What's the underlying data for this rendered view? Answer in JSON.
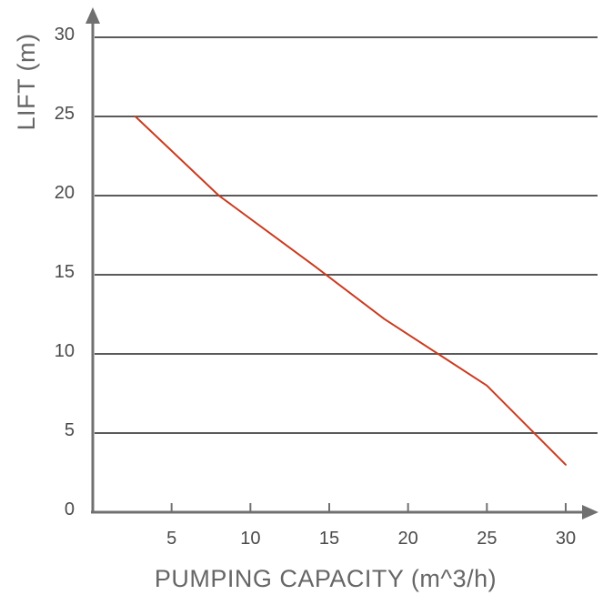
{
  "chart_data": {
    "type": "line",
    "xlabel": "PUMPING CAPACITY (m^3/h)",
    "ylabel": "LIFT (m)",
    "xlim": [
      0,
      30
    ],
    "ylim": [
      0,
      30
    ],
    "x_ticks": [
      5,
      10,
      15,
      20,
      25,
      30
    ],
    "y_ticks": [
      0,
      5,
      10,
      15,
      20,
      25,
      30
    ],
    "grid": "horizontal",
    "series": [
      {
        "color": "#cc3a1e",
        "x": [
          2.7,
          8,
          14,
          18.5,
          25,
          30
        ],
        "y": [
          25,
          20,
          15.6,
          12.2,
          8,
          3
        ]
      }
    ]
  }
}
